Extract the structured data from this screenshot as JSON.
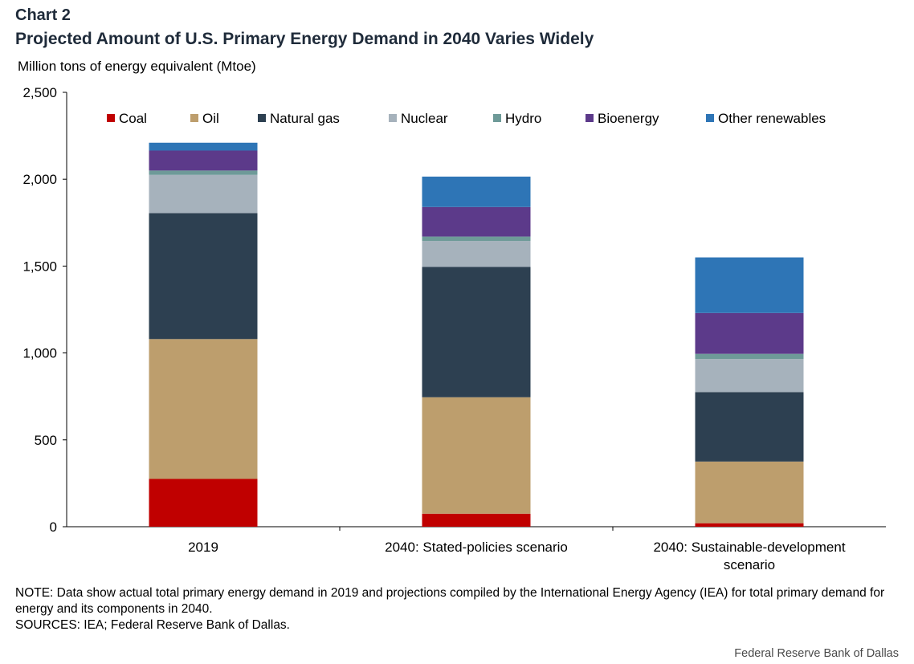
{
  "header": {
    "chart_number": "Chart 2",
    "title": "Projected Amount of U.S. Primary Energy Demand in 2040 Varies Widely"
  },
  "chart_data": {
    "type": "bar",
    "stacked": true,
    "title": "Projected Amount of U.S. Primary Energy Demand in 2040 Varies Widely",
    "ylabel": "Million tons of energy equivalent  (Mtoe)",
    "xlabel": "",
    "ylim": [
      0,
      2500
    ],
    "yticks": [
      0,
      500,
      1000,
      1500,
      2000,
      2500
    ],
    "ytick_labels": [
      "0",
      "500",
      "1,000",
      "1,500",
      "2,000",
      "2,500"
    ],
    "grid": false,
    "legend_position": "top",
    "categories": [
      "2019",
      "2040: Stated-policies scenario",
      "2040: Sustainable-development scenario"
    ],
    "category_lines": [
      [
        "2019"
      ],
      [
        "2040: Stated-policies scenario"
      ],
      [
        "2040: Sustainable-development",
        "scenario"
      ]
    ],
    "series": [
      {
        "name": "Coal",
        "color": "#c00000",
        "values": [
          275,
          75,
          20
        ]
      },
      {
        "name": "Oil",
        "color": "#bd9e6d",
        "values": [
          805,
          670,
          355
        ]
      },
      {
        "name": "Natural gas",
        "color": "#2d4051",
        "values": [
          725,
          750,
          400
        ]
      },
      {
        "name": "Nuclear",
        "color": "#a6b2bc",
        "values": [
          220,
          150,
          190
        ]
      },
      {
        "name": "Hydro",
        "color": "#6e9a98",
        "values": [
          25,
          25,
          30
        ]
      },
      {
        "name": "Bioenergy",
        "color": "#5c3a8a",
        "values": [
          115,
          170,
          235
        ]
      },
      {
        "name": "Other renewables",
        "color": "#2e75b6",
        "values": [
          45,
          175,
          320
        ]
      }
    ]
  },
  "notes": {
    "note": "NOTE: Data show actual total primary energy demand in 2019 and projections compiled by the International Energy Agency (IEA) for total primary demand for energy and its components in 2040.",
    "sources": "SOURCES: IEA;  Federal Reserve Bank of Dallas."
  },
  "credit": "Federal Reserve  Bank of Dallas"
}
